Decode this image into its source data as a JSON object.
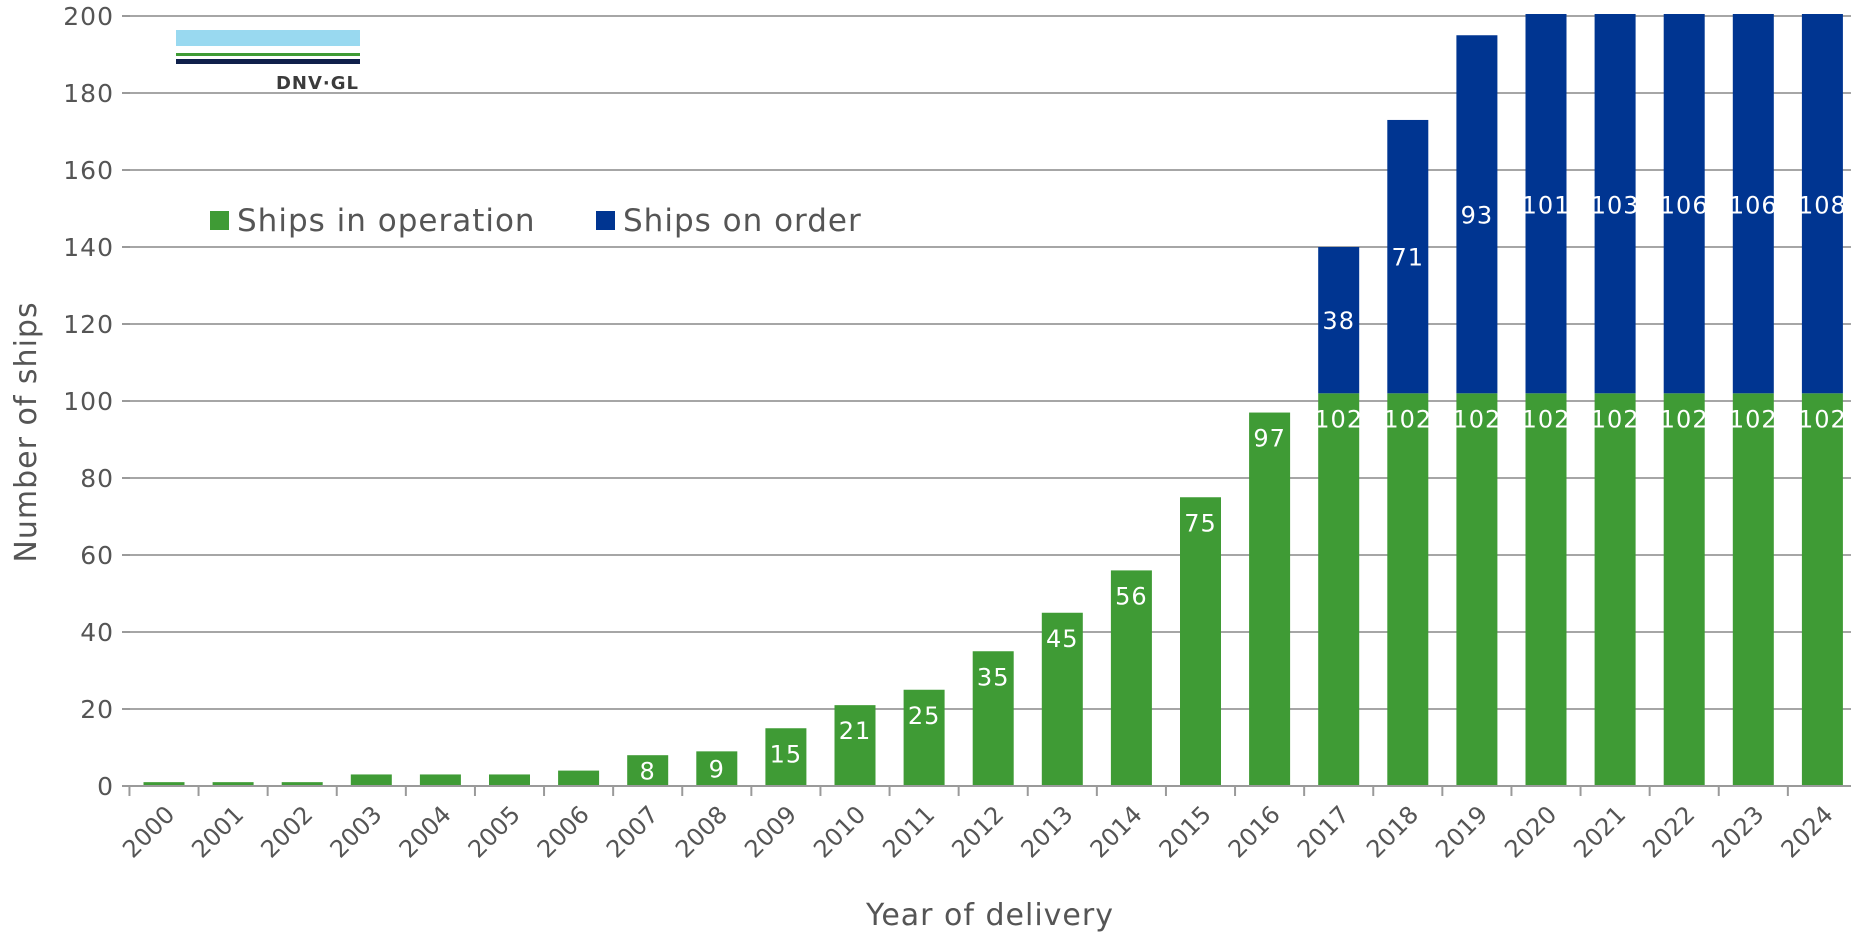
{
  "logo": {
    "text": "DNV·GL"
  },
  "chart_data": {
    "type": "bar",
    "stacked": true,
    "categories": [
      "2000",
      "2001",
      "2002",
      "2003",
      "2004",
      "2005",
      "2006",
      "2007",
      "2008",
      "2009",
      "2010",
      "2011",
      "2012",
      "2013",
      "2014",
      "2015",
      "2016",
      "2017",
      "2018",
      "2019",
      "2020",
      "2021",
      "2022",
      "2023",
      "2024"
    ],
    "series": [
      {
        "name": "Ships in operation",
        "color": "#3f9b35",
        "values": [
          1,
          1,
          1,
          3,
          3,
          3,
          4,
          8,
          9,
          15,
          21,
          25,
          35,
          45,
          56,
          75,
          97,
          102,
          102,
          102,
          102,
          102,
          102,
          102,
          102
        ],
        "labels": [
          "",
          "",
          "",
          "",
          "",
          "",
          "",
          "8",
          "9",
          "15",
          "21",
          "25",
          "35",
          "45",
          "56",
          "75",
          "97",
          "102",
          "102",
          "102",
          "102",
          "102",
          "102",
          "102",
          "102"
        ]
      },
      {
        "name": "Ships on order",
        "color": "#003591",
        "values": [
          0,
          0,
          0,
          0,
          0,
          0,
          0,
          0,
          0,
          0,
          0,
          0,
          0,
          0,
          0,
          0,
          0,
          38,
          71,
          93,
          101,
          103,
          106,
          106,
          108
        ],
        "labels": [
          "",
          "",
          "",
          "",
          "",
          "",
          "",
          "",
          "",
          "",
          "",
          "",
          "",
          "",
          "",
          "",
          "",
          "38",
          "71",
          "93",
          "101",
          "103",
          "106",
          "106",
          "108"
        ]
      }
    ],
    "xlabel": "Year of delivery",
    "ylabel": "Number of ships",
    "ylim": [
      0,
      200
    ],
    "yticks": [
      0,
      20,
      40,
      60,
      80,
      100,
      120,
      140,
      160,
      180,
      200
    ],
    "grid": true,
    "legend_position": "top-left"
  }
}
